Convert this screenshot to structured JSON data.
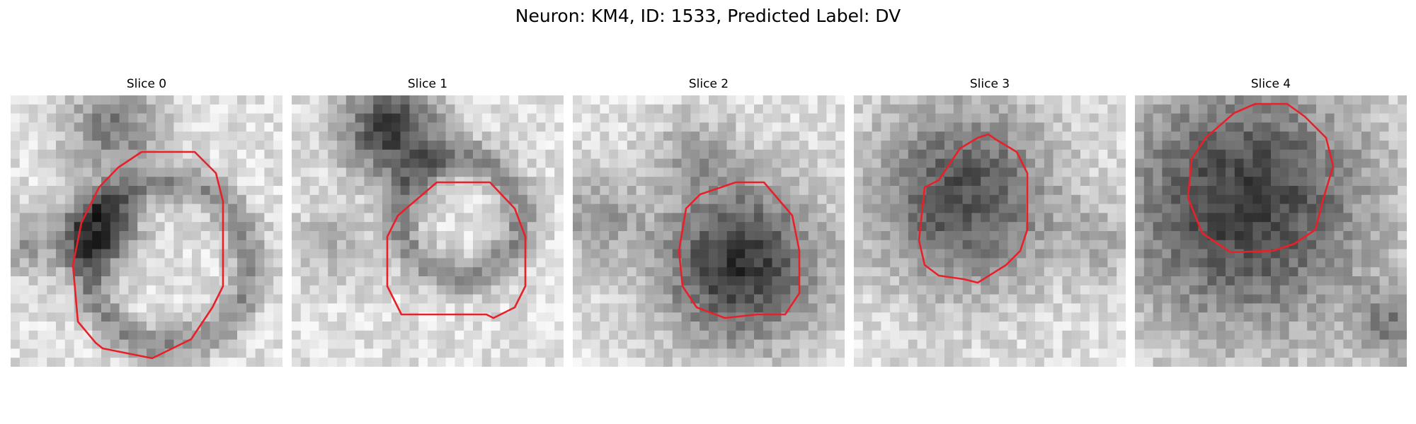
{
  "figure": {
    "title": "Neuron: KM4, ID: 1533, Predicted Label: DV"
  },
  "panels": [
    {
      "title": "Slice 0",
      "contour_color": "#e8202a"
    },
    {
      "title": "Slice 1",
      "contour_color": "#e8202a"
    },
    {
      "title": "Slice 2",
      "contour_color": "#e8202a"
    },
    {
      "title": "Slice 3",
      "contour_color": "#e8202a"
    },
    {
      "title": "Slice 4",
      "contour_color": "#e8202a"
    }
  ]
}
